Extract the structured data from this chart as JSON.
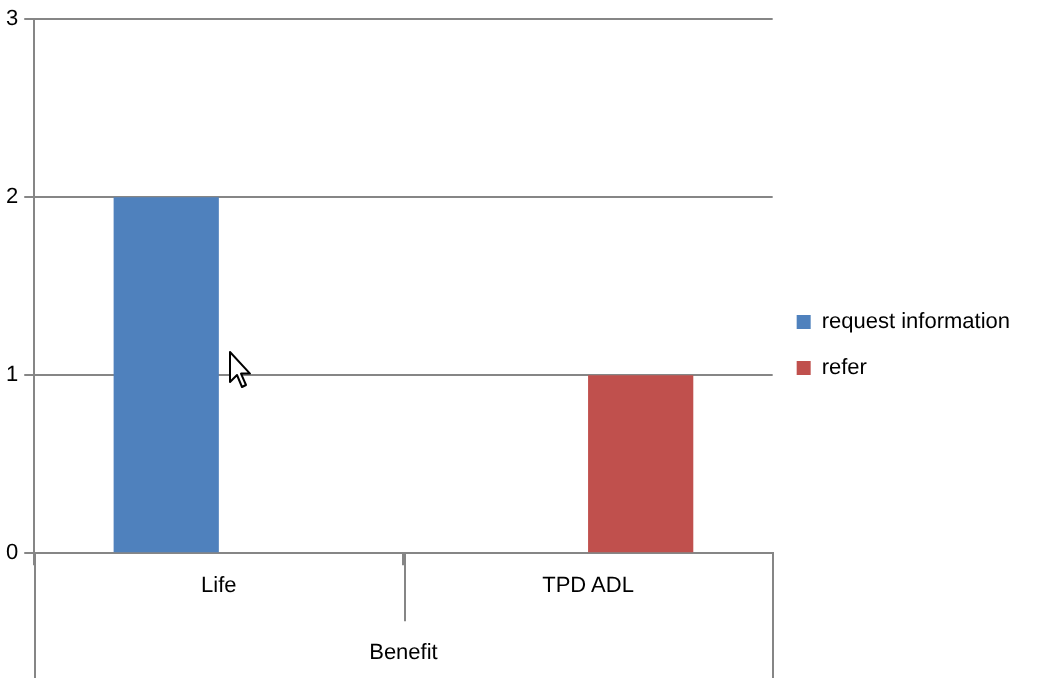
{
  "chart_data": {
    "type": "bar",
    "xlabel": "Benefit",
    "categories": [
      "Life",
      "TPD ADL"
    ],
    "series": [
      {
        "name": "request information",
        "color": "#4f81bd",
        "values": [
          2,
          null
        ]
      },
      {
        "name": "refer",
        "color": "#c0504d",
        "values": [
          null,
          1
        ]
      }
    ],
    "ylim": [
      0,
      3
    ],
    "yticks": [
      0,
      1,
      2,
      3
    ],
    "grid": "y",
    "legend": "right"
  }
}
